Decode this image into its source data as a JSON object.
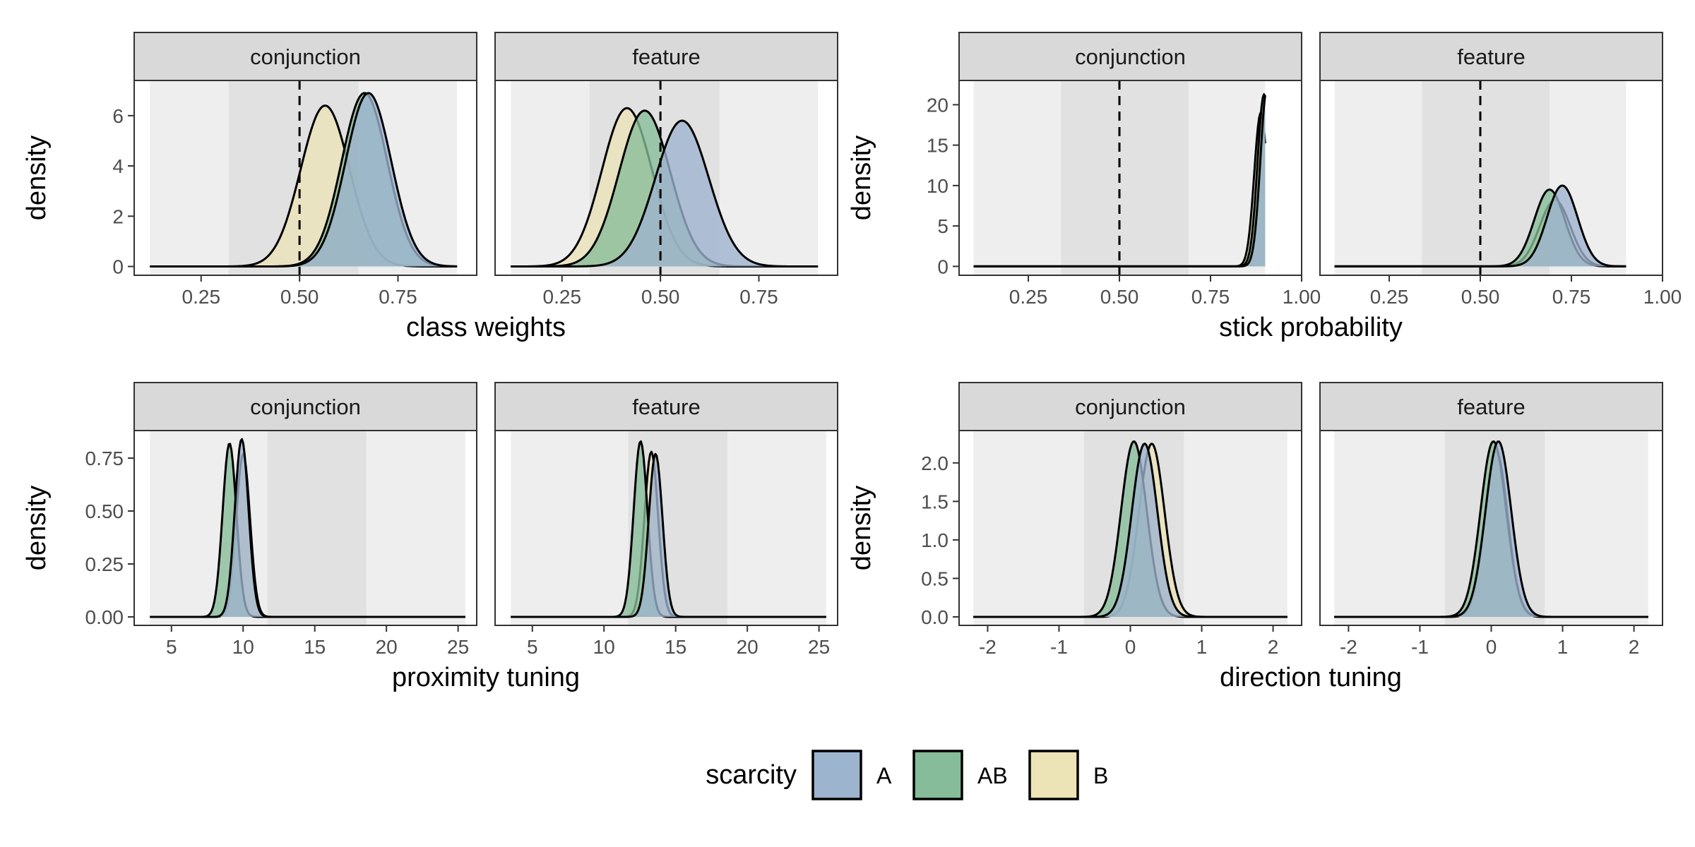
{
  "colors": {
    "A": "#9db4cf",
    "AB": "#86bc99",
    "B": "#ece3b7",
    "strip_fill": "#d9d9d9",
    "panel_band_outer": "#eeeeee",
    "panel_band_inner": "#e1e1e1"
  },
  "legend": {
    "title": "scarcity",
    "items": [
      {
        "key": "A",
        "label": "A",
        "color": "#9db4cf"
      },
      {
        "key": "AB",
        "label": "AB",
        "color": "#86bc99"
      },
      {
        "key": "B",
        "label": "B",
        "color": "#ece3b7"
      }
    ]
  },
  "chart_data": [
    {
      "type": "area",
      "xlabel": "class weights",
      "ylabel": "density",
      "xlim": [
        0.08,
        0.95
      ],
      "ylim": [
        -0.35,
        7.4
      ],
      "xticks": [
        0.25,
        0.5,
        0.75
      ],
      "xtick_labels": [
        "0.25",
        "0.50",
        "0.75"
      ],
      "yticks": [
        0,
        2,
        4,
        6
      ],
      "ytick_labels": [
        "0",
        "2",
        "4",
        "6"
      ],
      "outer_band": [
        0.12,
        0.9
      ],
      "panels": [
        {
          "facet": "conjunction",
          "inner_band": [
            0.32,
            0.65
          ],
          "vline": 0.5,
          "series": [
            {
              "name": "A",
              "mean": 0.675,
              "sd": 0.058,
              "peak": 6.9
            },
            {
              "name": "AB",
              "mean": 0.665,
              "sd": 0.058,
              "peak": 6.9
            },
            {
              "name": "B",
              "mean": 0.565,
              "sd": 0.062,
              "peak": 6.4
            }
          ]
        },
        {
          "facet": "feature",
          "inner_band": [
            0.32,
            0.65
          ],
          "vline": 0.5,
          "series": [
            {
              "name": "A",
              "mean": 0.555,
              "sd": 0.068,
              "peak": 5.8
            },
            {
              "name": "AB",
              "mean": 0.46,
              "sd": 0.065,
              "peak": 6.2
            },
            {
              "name": "B",
              "mean": 0.415,
              "sd": 0.064,
              "peak": 6.3
            }
          ]
        }
      ]
    },
    {
      "type": "area",
      "xlabel": "stick probability",
      "ylabel": "density",
      "xlim": [
        0.06,
        1.0
      ],
      "ylim": [
        -1.1,
        23.0
      ],
      "xticks": [
        0.25,
        0.5,
        0.75,
        1.0
      ],
      "xtick_labels": [
        "0.25",
        "0.50",
        "0.75",
        "1.00"
      ],
      "yticks": [
        0,
        5,
        10,
        15,
        20
      ],
      "ytick_labels": [
        "0",
        "5",
        "10",
        "15",
        "20"
      ],
      "outer_band": [
        0.1,
        0.9
      ],
      "panels": [
        {
          "facet": "conjunction",
          "inner_band": [
            0.34,
            0.69
          ],
          "vline": 0.5,
          "series": [
            {
              "name": "A",
              "mean": 0.905,
              "sd": 0.018,
              "peak": 22.0
            },
            {
              "name": "AB",
              "mean": 0.897,
              "sd": 0.018,
              "peak": 21.3
            },
            {
              "name": "B",
              "mean": 0.888,
              "sd": 0.018,
              "peak": 19.0
            }
          ]
        },
        {
          "facet": "feature",
          "inner_band": [
            0.34,
            0.69
          ],
          "vline": 0.5,
          "series": [
            {
              "name": "A",
              "mean": 0.725,
              "sd": 0.042,
              "peak": 10.0
            },
            {
              "name": "AB",
              "mean": 0.69,
              "sd": 0.042,
              "peak": 9.5
            },
            {
              "name": "B",
              "mean": 0.705,
              "sd": 0.042,
              "peak": 8.2
            }
          ]
        }
      ]
    },
    {
      "type": "area",
      "xlabel": "proximity tuning",
      "ylabel": "density",
      "xlim": [
        2.4,
        26.3
      ],
      "ylim": [
        -0.04,
        0.88
      ],
      "xticks": [
        5,
        10,
        15,
        20,
        25
      ],
      "xtick_labels": [
        "5",
        "10",
        "15",
        "20",
        "25"
      ],
      "yticks": [
        0,
        0.25,
        0.5,
        0.75
      ],
      "ytick_labels": [
        "0.00",
        "0.25",
        "0.50",
        "0.75"
      ],
      "outer_band": [
        3.5,
        25.5
      ],
      "panels": [
        {
          "facet": "conjunction",
          "inner_band": [
            11.7,
            18.6
          ],
          "vline": null,
          "series": [
            {
              "name": "A",
              "mean": 9.9,
              "sd": 0.48,
              "peak": 0.84
            },
            {
              "name": "AB",
              "mean": 9.05,
              "sd": 0.48,
              "peak": 0.82
            },
            {
              "name": "B",
              "mean": 10.0,
              "sd": 0.48,
              "peak": 0.77
            }
          ]
        },
        {
          "facet": "feature",
          "inner_band": [
            11.7,
            18.6
          ],
          "vline": null,
          "series": [
            {
              "name": "A",
              "mean": 13.6,
              "sd": 0.48,
              "peak": 0.77
            },
            {
              "name": "AB",
              "mean": 12.55,
              "sd": 0.48,
              "peak": 0.83
            },
            {
              "name": "B",
              "mean": 13.3,
              "sd": 0.48,
              "peak": 0.78
            }
          ]
        }
      ]
    },
    {
      "type": "area",
      "xlabel": "direction tuning",
      "ylabel": "density",
      "xlim": [
        -2.4,
        2.4
      ],
      "ylim": [
        -0.11,
        2.42
      ],
      "xticks": [
        -2,
        -1,
        0,
        1,
        2
      ],
      "xtick_labels": [
        "-2",
        "-1",
        "0",
        "1",
        "2"
      ],
      "yticks": [
        0,
        0.5,
        1.0,
        1.5,
        2.0
      ],
      "ytick_labels": [
        "0.0",
        "0.5",
        "1.0",
        "1.5",
        "2.0"
      ],
      "outer_band": [
        -2.2,
        2.2
      ],
      "panels": [
        {
          "facet": "conjunction",
          "inner_band": [
            -0.65,
            0.75
          ],
          "vline": null,
          "series": [
            {
              "name": "A",
              "mean": 0.2,
              "sd": 0.18,
              "peak": 2.25
            },
            {
              "name": "AB",
              "mean": 0.05,
              "sd": 0.18,
              "peak": 2.28
            },
            {
              "name": "B",
              "mean": 0.3,
              "sd": 0.18,
              "peak": 2.25
            }
          ]
        },
        {
          "facet": "feature",
          "inner_band": [
            -0.65,
            0.75
          ],
          "vline": null,
          "series": [
            {
              "name": "A",
              "mean": 0.1,
              "sd": 0.18,
              "peak": 2.28
            },
            {
              "name": "AB",
              "mean": 0.03,
              "sd": 0.18,
              "peak": 2.28
            },
            {
              "name": "B",
              "mean": 0.07,
              "sd": 0.16,
              "peak": 2.15
            }
          ]
        }
      ]
    }
  ]
}
